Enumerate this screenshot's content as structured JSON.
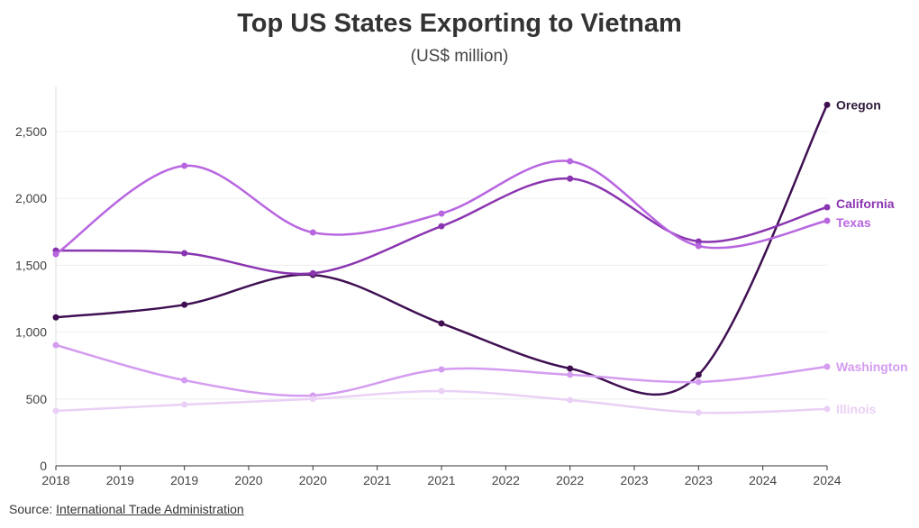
{
  "chart_data": {
    "type": "line",
    "title": "Top US States Exporting to Vietnam",
    "subtitle": "(US$ million)",
    "x": [
      2018,
      2019,
      2020,
      2021,
      2022,
      2023,
      2024
    ],
    "x_tick_labels": [
      "2018",
      "2019",
      "2019",
      "2020",
      "2020",
      "2021",
      "2021",
      "2022",
      "2022",
      "2023",
      "2023",
      "2024",
      "2024"
    ],
    "xlim": [
      2018,
      2024
    ],
    "ylim": [
      0,
      2800
    ],
    "y_ticks": [
      0,
      500,
      1000,
      1500,
      2000,
      2500
    ],
    "y_tick_labels": [
      "0",
      "500",
      "1,000",
      "1,500",
      "2,000",
      "2,500"
    ],
    "grid": true,
    "legend": "end-of-line labels",
    "series": [
      {
        "name": "Oregon",
        "color": "#3f0f52",
        "values": [
          1110,
          1205,
          1428,
          1065,
          728,
          681,
          2700
        ]
      },
      {
        "name": "California",
        "color": "#8a35b0",
        "values": [
          1610,
          1590,
          1440,
          1792,
          2148,
          1678,
          1934
        ]
      },
      {
        "name": "Texas",
        "color": "#b866e0",
        "values": [
          1583,
          2244,
          1745,
          1887,
          2278,
          1644,
          1833
        ]
      },
      {
        "name": "Washington",
        "color": "#d49cf0",
        "values": [
          903,
          640,
          526,
          721,
          681,
          627,
          741
        ]
      },
      {
        "name": "Illinois",
        "color": "#ead0f5",
        "values": [
          411,
          458,
          500,
          559,
          492,
          398,
          425
        ]
      }
    ]
  },
  "source": {
    "label": "Source: ",
    "link": "International Trade Administration"
  }
}
